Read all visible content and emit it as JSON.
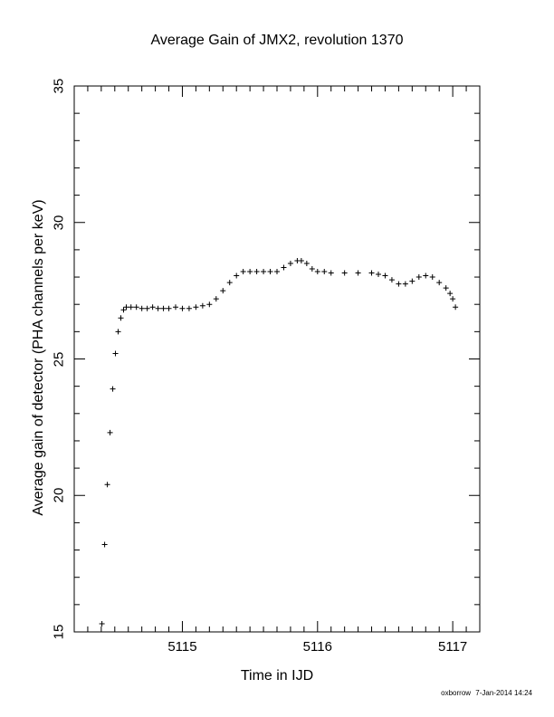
{
  "chart_data": {
    "type": "scatter",
    "title": "Average Gain of JMX2, revolution 1370",
    "xlabel": "Time in IJD",
    "ylabel": "Average gain of detector (PHA channels per keV)",
    "xlim": [
      5114.2,
      5117.2
    ],
    "ylim": [
      15,
      35
    ],
    "xticks": [
      5115,
      5116,
      5117
    ],
    "xtick_labels": [
      "5115",
      "5116",
      "5117"
    ],
    "yticks": [
      15,
      20,
      25,
      30,
      35
    ],
    "ytick_labels": [
      "15",
      "20",
      "25",
      "30",
      "35"
    ],
    "marker": "plus",
    "series": [
      {
        "x": [
          5114.405,
          5114.425,
          5114.445,
          5114.465,
          5114.485,
          5114.505,
          5114.525,
          5114.545,
          5114.565,
          5114.585,
          5114.62,
          5114.66,
          5114.7,
          5114.74,
          5114.78,
          5114.82,
          5114.86,
          5114.9,
          5114.95,
          5115.0,
          5115.05,
          5115.1,
          5115.15,
          5115.2,
          5115.25,
          5115.3,
          5115.35,
          5115.4,
          5115.45,
          5115.5,
          5115.55,
          5115.6,
          5115.65,
          5115.7,
          5115.75,
          5115.8,
          5115.85,
          5115.88,
          5115.92,
          5115.96,
          5116.0,
          5116.05,
          5116.1,
          5116.2,
          5116.3,
          5116.4,
          5116.45,
          5116.5,
          5116.55,
          5116.6,
          5116.65,
          5116.7,
          5116.75,
          5116.8,
          5116.85,
          5116.9,
          5116.95,
          5116.98,
          5117.0,
          5117.02
        ],
        "y": [
          15.3,
          18.2,
          20.4,
          22.3,
          23.9,
          25.2,
          26.0,
          26.5,
          26.8,
          26.9,
          26.9,
          26.9,
          26.85,
          26.85,
          26.9,
          26.85,
          26.85,
          26.85,
          26.9,
          26.85,
          26.85,
          26.9,
          26.95,
          27.0,
          27.2,
          27.5,
          27.8,
          28.05,
          28.2,
          28.2,
          28.2,
          28.2,
          28.2,
          28.2,
          28.35,
          28.5,
          28.6,
          28.6,
          28.5,
          28.3,
          28.2,
          28.2,
          28.15,
          28.15,
          28.15,
          28.15,
          28.1,
          28.05,
          27.9,
          27.75,
          27.75,
          27.85,
          28.0,
          28.05,
          28.0,
          27.8,
          27.6,
          27.4,
          27.2,
          26.9
        ]
      }
    ]
  },
  "footer": {
    "author": "oxborrow",
    "timestamp": "7-Jan-2014 14:24"
  }
}
